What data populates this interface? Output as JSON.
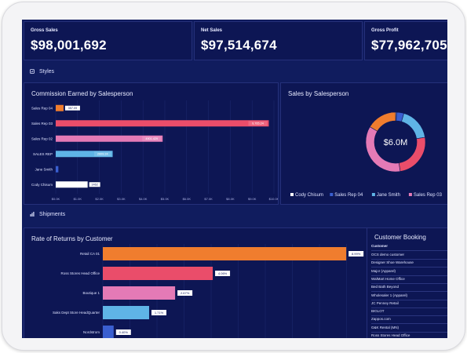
{
  "kpis": [
    {
      "label": "Gross Sales",
      "value": "$98,001,692"
    },
    {
      "label": "Net Sales",
      "value": "$97,514,674"
    },
    {
      "label": "Gross Profit",
      "value": "$77,962,705"
    }
  ],
  "sections": {
    "styles": "Styles",
    "shipments": "Shipments"
  },
  "colors": {
    "orange": "#f07d2e",
    "red": "#ea4d6a",
    "pink": "#e47ab6",
    "lightblue": "#5fb4e6",
    "blue": "#3a5fd0",
    "white": "#ffffff"
  },
  "commission": {
    "title": "Commission Earned by Salesperson",
    "chart_data": {
      "type": "bar",
      "orientation": "horizontal",
      "categories": [
        "Sales Rep 04",
        "Sales Rep 03",
        "Sales Rep 02",
        "SALES REP",
        "Jane Smith",
        "Cody Chisum"
      ],
      "values": [
        357.09,
        9765.24,
        4901.429,
        2609.24,
        120,
        1462
      ],
      "labels": [
        "357.09",
        "9,765.24",
        "4901.429",
        "2609.24",
        "",
        "1462"
      ],
      "colors": [
        "#f07d2e",
        "#ea4d6a",
        "#e47ab6",
        "#5fb4e6",
        "#3a5fd0",
        "#ffffff"
      ],
      "xlim": [
        0,
        10000
      ],
      "ticks": [
        "$0.0K",
        "$1.0K",
        "$2.0K",
        "$3.0K",
        "$4.0K",
        "$5.0K",
        "$6.0K",
        "$7.0K",
        "$8.0K",
        "$9.0K",
        "$10.0K"
      ]
    }
  },
  "donut": {
    "title": "Sales by Salesperson",
    "center": "$6.0M",
    "chart_data": {
      "type": "pie",
      "categories": [
        "Cody Chisum",
        "Sales Rep 04",
        "Jane Smith",
        "Sales Rep 03",
        "Sales Rep 02",
        "SALES REP"
      ],
      "values": [
        0.5,
        4,
        18,
        25,
        36,
        16.5
      ],
      "colors": [
        "#ffffff",
        "#3a5fd0",
        "#5fb4e6",
        "#ea4d6a",
        "#e47ab6",
        "#f07d2e"
      ]
    },
    "legend": [
      {
        "label": "Cody Chisum",
        "color": "#ffffff"
      },
      {
        "label": "Sales Rep 04",
        "color": "#3a5fd0"
      },
      {
        "label": "Jane Smith",
        "color": "#5fb4e6"
      },
      {
        "label": "Sales Rep 03",
        "color": "#e47ab6"
      }
    ]
  },
  "returns": {
    "title": "Rate of Returns by Customer",
    "chart_data": {
      "type": "bar",
      "orientation": "horizontal",
      "categories": [
        "Retail CA 01",
        "Ross Stores Head Office",
        "Boutique 1",
        "Saks Dept Store HeadQuarter",
        "Nordstrom"
      ],
      "values": [
        8.99,
        4.06,
        2.67,
        1.71,
        0.4
      ],
      "labels": [
        "8.99%",
        "4.06%",
        "2.67%",
        "1.71%",
        "0.40%"
      ],
      "colors": [
        "#f07d2e",
        "#ea4d6a",
        "#e47ab6",
        "#5fb4e6",
        "#3a5fd0"
      ],
      "xlim": [
        0,
        10
      ]
    }
  },
  "booking": {
    "title": "Customer Booking",
    "header": "Customer",
    "rows": [
      "OCS demo customer",
      "Designer Shoe Warehouse",
      "Major (Apparel)",
      "WalMart Home Office",
      "Bed Bath Beyond",
      "Wholesaler 1 (Apparel)",
      "JC Penney Retail",
      "BIGLOT",
      "Zappos.com",
      "G&K Rental (MN)",
      "Ross Stores Head Office"
    ]
  }
}
